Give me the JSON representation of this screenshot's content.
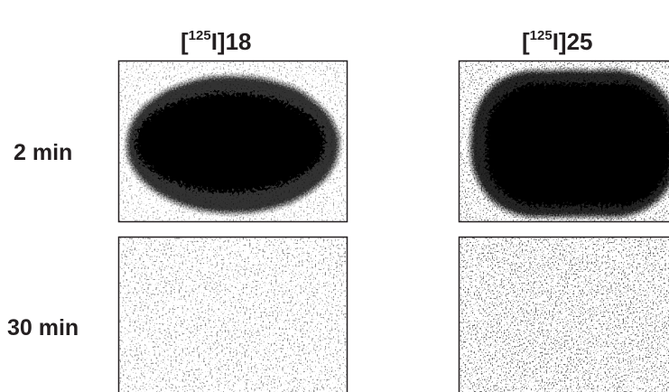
{
  "columns": [
    {
      "prefix": "[",
      "superscript": "125",
      "suffix": "I]18"
    },
    {
      "prefix": "[",
      "superscript": "125",
      "suffix": "I]25"
    }
  ],
  "rows": [
    "2 min",
    "30 min"
  ]
}
